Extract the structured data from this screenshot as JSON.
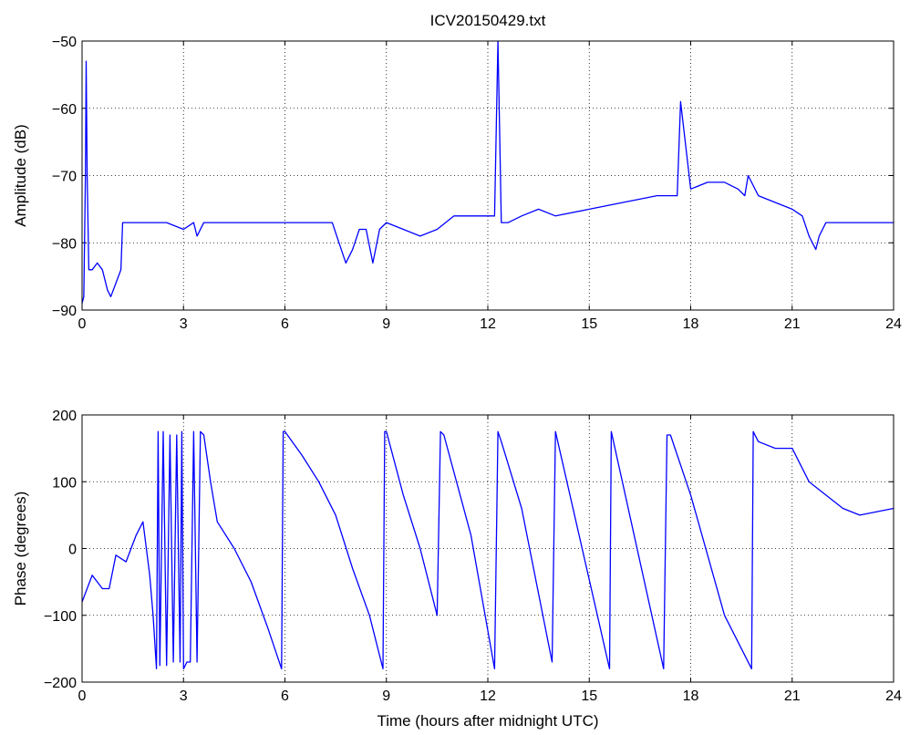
{
  "chart_data": [
    {
      "type": "line",
      "title": "ICV20150429.txt",
      "xlabel": "",
      "ylabel": "Amplitude (dB)",
      "xlim": [
        0,
        24
      ],
      "ylim": [
        -90,
        -50
      ],
      "xticks": [
        "0",
        "3",
        "6",
        "9",
        "12",
        "15",
        "18",
        "21",
        "24"
      ],
      "yticks": [
        "−90",
        "−80",
        "−70",
        "−60",
        "−50"
      ],
      "grid": true,
      "line_color": "#0000ff",
      "series": [
        {
          "x": [
            0,
            0.05,
            0.1,
            0.12,
            0.15,
            0.2,
            0.3,
            0.45,
            0.6,
            0.75,
            0.85,
            1.0,
            1.15,
            1.2,
            1.3,
            1.5,
            2,
            2.5,
            3,
            3.3,
            3.4,
            3.6,
            4,
            5,
            6,
            6.5,
            7,
            7.4,
            7.6,
            7.8,
            8,
            8.2,
            8.4,
            8.6,
            8.8,
            9,
            9.5,
            10,
            10.5,
            11,
            11.5,
            11.8,
            12,
            12.2,
            12.3,
            12.4,
            12.6,
            13,
            13.5,
            14,
            15,
            16,
            17,
            17.5,
            17.6,
            17.7,
            18,
            18.5,
            19,
            19.4,
            19.6,
            19.7,
            20,
            20.5,
            21,
            21.3,
            21.5,
            21.7,
            21.8,
            22,
            23,
            24
          ],
          "y": [
            -89,
            -88,
            -70,
            -53,
            -70,
            -84,
            -84,
            -83,
            -84,
            -87,
            -88,
            -86,
            -84,
            -77,
            -77,
            -77,
            -77,
            -77,
            -78,
            -77,
            -79,
            -77,
            -77,
            -77,
            -77,
            -77,
            -77,
            -77,
            -80,
            -83,
            -81,
            -78,
            -78,
            -83,
            -78,
            -77,
            -78,
            -79,
            -78,
            -76,
            -76,
            -76,
            -76,
            -76,
            -50,
            -77,
            -77,
            -76,
            -75,
            -76,
            -75,
            -74,
            -73,
            -73,
            -73,
            -59,
            -72,
            -71,
            -71,
            -72,
            -73,
            -70,
            -73,
            -74,
            -75,
            -76,
            -79,
            -81,
            -79,
            -77,
            -77,
            -77
          ]
        }
      ]
    },
    {
      "type": "line",
      "title": "",
      "xlabel": "Time (hours after midnight UTC)",
      "ylabel": "Phase (degrees)",
      "xlim": [
        0,
        24
      ],
      "ylim": [
        -200,
        200
      ],
      "xticks": [
        "0",
        "3",
        "6",
        "9",
        "12",
        "15",
        "18",
        "21",
        "24"
      ],
      "yticks": [
        "−200",
        "−100",
        "0",
        "100",
        "200"
      ],
      "grid": true,
      "line_color": "#0000ff",
      "series": [
        {
          "x": [
            0,
            0.3,
            0.6,
            0.8,
            1.0,
            1.3,
            1.6,
            1.8,
            2.0,
            2.1,
            2.2,
            2.25,
            2.3,
            2.4,
            2.5,
            2.6,
            2.7,
            2.8,
            2.9,
            2.95,
            3.0,
            3.1,
            3.2,
            3.3,
            3.4,
            3.5,
            3.6,
            3.8,
            4.0,
            4.5,
            5.0,
            5.5,
            5.9,
            5.95,
            6.0,
            6.5,
            7.0,
            7.5,
            8.0,
            8.5,
            8.9,
            8.95,
            9.0,
            9.5,
            10.0,
            10.5,
            10.6,
            10.7,
            11.5,
            12.2,
            12.3,
            12.4,
            13.0,
            13.9,
            14.0,
            15.6,
            15.65,
            17.2,
            17.3,
            17.4,
            18.0,
            19.0,
            19.8,
            19.85,
            20.0,
            20.5,
            21.0,
            21.5,
            22.0,
            22.5,
            23.0,
            24.0
          ],
          "y": [
            -80,
            -40,
            -60,
            -60,
            -10,
            -20,
            20,
            40,
            -40,
            -100,
            -180,
            175,
            -175,
            175,
            -175,
            170,
            -170,
            170,
            -170,
            175,
            -180,
            -170,
            -170,
            175,
            -170,
            175,
            170,
            100,
            40,
            0,
            -50,
            -120,
            -180,
            175,
            175,
            140,
            100,
            50,
            -30,
            -100,
            -180,
            175,
            175,
            80,
            0,
            -100,
            175,
            170,
            20,
            -180,
            175,
            160,
            60,
            -170,
            175,
            -180,
            175,
            -180,
            170,
            170,
            80,
            -100,
            -180,
            175,
            160,
            150,
            150,
            100,
            80,
            60,
            50,
            60
          ]
        }
      ]
    }
  ]
}
